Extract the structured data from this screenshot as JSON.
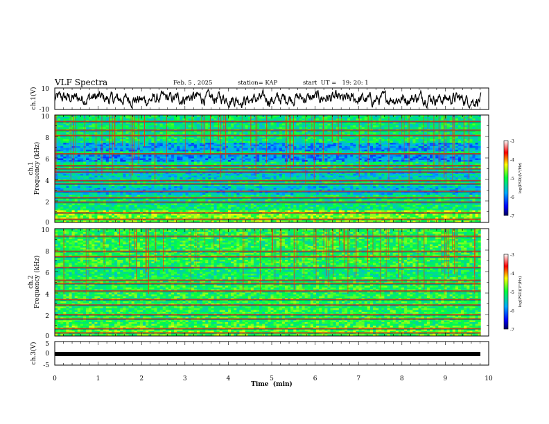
{
  "header": {
    "title": "VLF Spectra",
    "date": "Feb. 5 , 2025",
    "station": "station= KAP",
    "start": "start  UT =   19: 20: 1"
  },
  "chart_data": [
    {
      "type": "line",
      "panel": "ch1-waveform",
      "ylabel": "ch.1(V)",
      "ylim": [
        -10,
        10
      ],
      "yticks": [
        "10",
        "-10"
      ],
      "xlim": [
        0,
        10
      ]
    },
    {
      "type": "heatmap",
      "panel": "ch1-spectrogram",
      "ylabel_channel": "ch.1",
      "ylabel": "Frequency (kHz)",
      "ylim": [
        0,
        10
      ],
      "yticks": [
        "0",
        "2",
        "4",
        "6",
        "8",
        "10"
      ],
      "xlim": [
        0,
        9.8
      ],
      "colorbar": {
        "label": "log(PSD)(V²/Hz)",
        "ticks": [
          "-3",
          "-4",
          "-5",
          "-6",
          "-7"
        ],
        "range": [
          -7,
          -3
        ]
      }
    },
    {
      "type": "heatmap",
      "panel": "ch2-spectrogram",
      "ylabel_channel": "ch.2",
      "ylabel": "Frequency (kHz)",
      "ylim": [
        0,
        10
      ],
      "yticks": [
        "0",
        "2",
        "4",
        "6",
        "8",
        "10"
      ],
      "xlim": [
        0,
        9.8
      ],
      "colorbar": {
        "label": "log(PSD)(V²/Hz)",
        "ticks": [
          "-3",
          "-4",
          "-5",
          "-6",
          "-7"
        ],
        "range": [
          -7,
          -3
        ]
      }
    },
    {
      "type": "line",
      "panel": "ch3-waveform",
      "ylabel": "ch.3(V)",
      "ylim": [
        -5,
        5
      ],
      "yticks": [
        "5",
        "0",
        "-5"
      ],
      "xlim": [
        0,
        10
      ],
      "xlabel": "Time  (min)",
      "xticks": [
        "0",
        "1",
        "2",
        "3",
        "4",
        "5",
        "6",
        "7",
        "8",
        "9",
        "10"
      ]
    }
  ]
}
